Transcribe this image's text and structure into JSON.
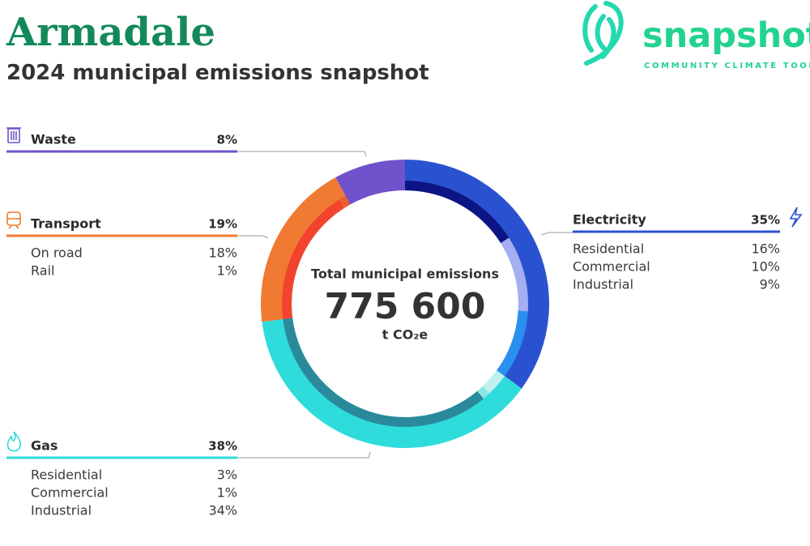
{
  "header": {
    "title": "Armadale",
    "subtitle": "2024 municipal emissions snapshot",
    "logo": {
      "name": "snapshot",
      "tagline": "COMMUNITY CLIMATE TOOL"
    }
  },
  "chart_data": {
    "type": "donut",
    "center": {
      "title": "Total municipal emissions",
      "values": [
        775600
      ],
      "value_labels": [
        "775 600"
      ],
      "unit": "t CO₂e"
    },
    "series": [
      {
        "name": "Electricity",
        "color": "#2a52d0",
        "values": [
          35
        ],
        "value_labels": [
          "35%"
        ],
        "subsectors": {
          "categories": [
            "Residential",
            "Commercial",
            "Industrial"
          ],
          "values": [
            16,
            10,
            9
          ],
          "value_labels": [
            "16%",
            "10%",
            "9%"
          ],
          "colors": [
            "#0c1583",
            "#a4aef0",
            "#2b8ff2"
          ]
        }
      },
      {
        "name": "Gas",
        "color": "#2edcdc",
        "values": [
          38
        ],
        "value_labels": [
          "38%"
        ],
        "subsectors": {
          "categories": [
            "Residential",
            "Commercial",
            "Industrial"
          ],
          "values": [
            3,
            1,
            34
          ],
          "value_labels": [
            "3%",
            "1%",
            "34%"
          ],
          "colors": [
            "#bff0f0",
            "#8de6e6",
            "#2a8a9c"
          ]
        }
      },
      {
        "name": "Transport",
        "color": "#f07a32",
        "values": [
          19
        ],
        "value_labels": [
          "19%"
        ],
        "subsectors": {
          "categories": [
            "On road",
            "Rail"
          ],
          "values": [
            18,
            1
          ],
          "value_labels": [
            "18%",
            "1%"
          ],
          "colors": [
            "#f2432e",
            "#e8602e"
          ]
        }
      },
      {
        "name": "Waste",
        "color": "#7052cc",
        "values": [
          8
        ],
        "value_labels": [
          "8%"
        ]
      }
    ]
  }
}
